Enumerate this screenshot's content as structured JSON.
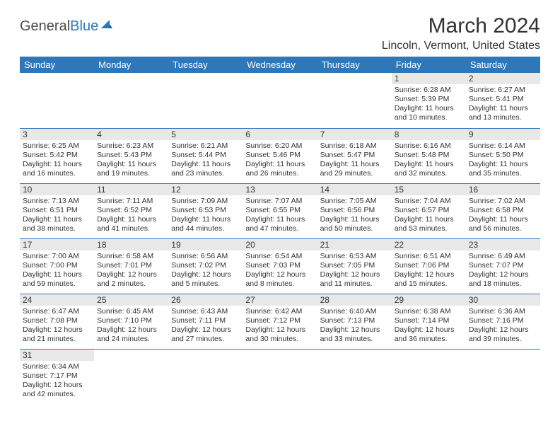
{
  "brand": {
    "part1": "General",
    "part2": "Blue"
  },
  "title": "March 2024",
  "location": "Lincoln, Vermont, United States",
  "colors": {
    "header_bg": "#2e77b8",
    "header_text": "#ffffff",
    "daynum_bg": "#e8e8e8",
    "row_divider": "#2e77b8",
    "body_text": "#333333"
  },
  "day_headers": [
    "Sunday",
    "Monday",
    "Tuesday",
    "Wednesday",
    "Thursday",
    "Friday",
    "Saturday"
  ],
  "weeks": [
    [
      null,
      null,
      null,
      null,
      null,
      {
        "n": "1",
        "sunrise": "Sunrise: 6:28 AM",
        "sunset": "Sunset: 5:39 PM",
        "daylight": "Daylight: 11 hours and 10 minutes."
      },
      {
        "n": "2",
        "sunrise": "Sunrise: 6:27 AM",
        "sunset": "Sunset: 5:41 PM",
        "daylight": "Daylight: 11 hours and 13 minutes."
      }
    ],
    [
      {
        "n": "3",
        "sunrise": "Sunrise: 6:25 AM",
        "sunset": "Sunset: 5:42 PM",
        "daylight": "Daylight: 11 hours and 16 minutes."
      },
      {
        "n": "4",
        "sunrise": "Sunrise: 6:23 AM",
        "sunset": "Sunset: 5:43 PM",
        "daylight": "Daylight: 11 hours and 19 minutes."
      },
      {
        "n": "5",
        "sunrise": "Sunrise: 6:21 AM",
        "sunset": "Sunset: 5:44 PM",
        "daylight": "Daylight: 11 hours and 23 minutes."
      },
      {
        "n": "6",
        "sunrise": "Sunrise: 6:20 AM",
        "sunset": "Sunset: 5:46 PM",
        "daylight": "Daylight: 11 hours and 26 minutes."
      },
      {
        "n": "7",
        "sunrise": "Sunrise: 6:18 AM",
        "sunset": "Sunset: 5:47 PM",
        "daylight": "Daylight: 11 hours and 29 minutes."
      },
      {
        "n": "8",
        "sunrise": "Sunrise: 6:16 AM",
        "sunset": "Sunset: 5:48 PM",
        "daylight": "Daylight: 11 hours and 32 minutes."
      },
      {
        "n": "9",
        "sunrise": "Sunrise: 6:14 AM",
        "sunset": "Sunset: 5:50 PM",
        "daylight": "Daylight: 11 hours and 35 minutes."
      }
    ],
    [
      {
        "n": "10",
        "sunrise": "Sunrise: 7:13 AM",
        "sunset": "Sunset: 6:51 PM",
        "daylight": "Daylight: 11 hours and 38 minutes."
      },
      {
        "n": "11",
        "sunrise": "Sunrise: 7:11 AM",
        "sunset": "Sunset: 6:52 PM",
        "daylight": "Daylight: 11 hours and 41 minutes."
      },
      {
        "n": "12",
        "sunrise": "Sunrise: 7:09 AM",
        "sunset": "Sunset: 6:53 PM",
        "daylight": "Daylight: 11 hours and 44 minutes."
      },
      {
        "n": "13",
        "sunrise": "Sunrise: 7:07 AM",
        "sunset": "Sunset: 6:55 PM",
        "daylight": "Daylight: 11 hours and 47 minutes."
      },
      {
        "n": "14",
        "sunrise": "Sunrise: 7:05 AM",
        "sunset": "Sunset: 6:56 PM",
        "daylight": "Daylight: 11 hours and 50 minutes."
      },
      {
        "n": "15",
        "sunrise": "Sunrise: 7:04 AM",
        "sunset": "Sunset: 6:57 PM",
        "daylight": "Daylight: 11 hours and 53 minutes."
      },
      {
        "n": "16",
        "sunrise": "Sunrise: 7:02 AM",
        "sunset": "Sunset: 6:58 PM",
        "daylight": "Daylight: 11 hours and 56 minutes."
      }
    ],
    [
      {
        "n": "17",
        "sunrise": "Sunrise: 7:00 AM",
        "sunset": "Sunset: 7:00 PM",
        "daylight": "Daylight: 11 hours and 59 minutes."
      },
      {
        "n": "18",
        "sunrise": "Sunrise: 6:58 AM",
        "sunset": "Sunset: 7:01 PM",
        "daylight": "Daylight: 12 hours and 2 minutes."
      },
      {
        "n": "19",
        "sunrise": "Sunrise: 6:56 AM",
        "sunset": "Sunset: 7:02 PM",
        "daylight": "Daylight: 12 hours and 5 minutes."
      },
      {
        "n": "20",
        "sunrise": "Sunrise: 6:54 AM",
        "sunset": "Sunset: 7:03 PM",
        "daylight": "Daylight: 12 hours and 8 minutes."
      },
      {
        "n": "21",
        "sunrise": "Sunrise: 6:53 AM",
        "sunset": "Sunset: 7:05 PM",
        "daylight": "Daylight: 12 hours and 11 minutes."
      },
      {
        "n": "22",
        "sunrise": "Sunrise: 6:51 AM",
        "sunset": "Sunset: 7:06 PM",
        "daylight": "Daylight: 12 hours and 15 minutes."
      },
      {
        "n": "23",
        "sunrise": "Sunrise: 6:49 AM",
        "sunset": "Sunset: 7:07 PM",
        "daylight": "Daylight: 12 hours and 18 minutes."
      }
    ],
    [
      {
        "n": "24",
        "sunrise": "Sunrise: 6:47 AM",
        "sunset": "Sunset: 7:08 PM",
        "daylight": "Daylight: 12 hours and 21 minutes."
      },
      {
        "n": "25",
        "sunrise": "Sunrise: 6:45 AM",
        "sunset": "Sunset: 7:10 PM",
        "daylight": "Daylight: 12 hours and 24 minutes."
      },
      {
        "n": "26",
        "sunrise": "Sunrise: 6:43 AM",
        "sunset": "Sunset: 7:11 PM",
        "daylight": "Daylight: 12 hours and 27 minutes."
      },
      {
        "n": "27",
        "sunrise": "Sunrise: 6:42 AM",
        "sunset": "Sunset: 7:12 PM",
        "daylight": "Daylight: 12 hours and 30 minutes."
      },
      {
        "n": "28",
        "sunrise": "Sunrise: 6:40 AM",
        "sunset": "Sunset: 7:13 PM",
        "daylight": "Daylight: 12 hours and 33 minutes."
      },
      {
        "n": "29",
        "sunrise": "Sunrise: 6:38 AM",
        "sunset": "Sunset: 7:14 PM",
        "daylight": "Daylight: 12 hours and 36 minutes."
      },
      {
        "n": "30",
        "sunrise": "Sunrise: 6:36 AM",
        "sunset": "Sunset: 7:16 PM",
        "daylight": "Daylight: 12 hours and 39 minutes."
      }
    ],
    [
      {
        "n": "31",
        "sunrise": "Sunrise: 6:34 AM",
        "sunset": "Sunset: 7:17 PM",
        "daylight": "Daylight: 12 hours and 42 minutes."
      },
      null,
      null,
      null,
      null,
      null,
      null
    ]
  ]
}
